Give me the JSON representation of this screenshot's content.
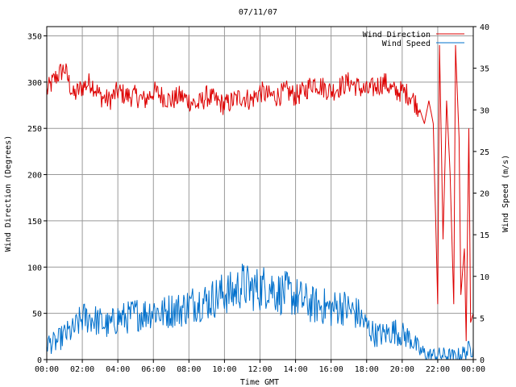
{
  "chart_data": {
    "type": "line",
    "title": "07/11/07",
    "xlabel": "Time GMT",
    "ylabel_left": "Wind Direction (Degrees)",
    "ylabel_right": "Wind Speed (m/s)",
    "x_ticks": [
      "00:00",
      "02:00",
      "04:00",
      "06:00",
      "08:00",
      "10:00",
      "12:00",
      "14:00",
      "16:00",
      "18:00",
      "20:00",
      "22:00",
      "00:00"
    ],
    "xlim_hours": [
      0,
      24
    ],
    "ylim_left": [
      0,
      360
    ],
    "ylim_right": [
      0,
      40
    ],
    "y_ticks_left": [
      0,
      50,
      100,
      150,
      200,
      250,
      300,
      350
    ],
    "y_ticks_right": [
      0,
      5,
      10,
      15,
      20,
      25,
      30,
      35,
      40
    ],
    "grid": true,
    "legend_position": "top-right",
    "colors": {
      "wind_direction": "#dd0000",
      "wind_speed": "#0070cc",
      "grid": "#999999"
    },
    "series": [
      {
        "name": "Wind Direction",
        "axis": "left",
        "points": [
          [
            0,
            290
          ],
          [
            0.5,
            305
          ],
          [
            1,
            315
          ],
          [
            1.5,
            285
          ],
          [
            2,
            295
          ],
          [
            2.5,
            300
          ],
          [
            3,
            285
          ],
          [
            3.5,
            280
          ],
          [
            4,
            290
          ],
          [
            4.5,
            285
          ],
          [
            5,
            285
          ],
          [
            5.5,
            280
          ],
          [
            6,
            290
          ],
          [
            6.5,
            285
          ],
          [
            7,
            280
          ],
          [
            7.5,
            285
          ],
          [
            8,
            280
          ],
          [
            8.5,
            275
          ],
          [
            9,
            285
          ],
          [
            9.5,
            280
          ],
          [
            10,
            275
          ],
          [
            10.5,
            280
          ],
          [
            11,
            285
          ],
          [
            11.5,
            280
          ],
          [
            12,
            290
          ],
          [
            12.5,
            285
          ],
          [
            13,
            285
          ],
          [
            13.5,
            290
          ],
          [
            14,
            285
          ],
          [
            14.5,
            290
          ],
          [
            15,
            300
          ],
          [
            15.5,
            295
          ],
          [
            16,
            290
          ],
          [
            16.5,
            295
          ],
          [
            17,
            300
          ],
          [
            17.5,
            295
          ],
          [
            18,
            290
          ],
          [
            18.5,
            295
          ],
          [
            19,
            300
          ],
          [
            19.5,
            290
          ],
          [
            20,
            290
          ],
          [
            20.5,
            285
          ],
          [
            21,
            270
          ],
          [
            21.25,
            255
          ],
          [
            21.5,
            280
          ],
          [
            21.75,
            255
          ],
          [
            22,
            60
          ],
          [
            22.1,
            340
          ],
          [
            22.3,
            130
          ],
          [
            22.5,
            280
          ],
          [
            22.7,
            200
          ],
          [
            22.9,
            60
          ],
          [
            23,
            340
          ],
          [
            23.2,
            240
          ],
          [
            23.3,
            70
          ],
          [
            23.5,
            120
          ],
          [
            23.6,
            20
          ],
          [
            23.75,
            250
          ],
          [
            23.85,
            40
          ],
          [
            24,
            50
          ]
        ]
      },
      {
        "name": "Wind Speed",
        "axis": "right",
        "points": [
          [
            0,
            2
          ],
          [
            0.5,
            2
          ],
          [
            1,
            3
          ],
          [
            1.5,
            3.5
          ],
          [
            2,
            5
          ],
          [
            2.5,
            5
          ],
          [
            3,
            4.5
          ],
          [
            3.5,
            4
          ],
          [
            4,
            5
          ],
          [
            4.5,
            5
          ],
          [
            5,
            5.5
          ],
          [
            5.5,
            5.5
          ],
          [
            6,
            6
          ],
          [
            6.5,
            5.5
          ],
          [
            7,
            6
          ],
          [
            7.5,
            6
          ],
          [
            8,
            6.5
          ],
          [
            8.5,
            7
          ],
          [
            9,
            7
          ],
          [
            9.5,
            7.5
          ],
          [
            10,
            8
          ],
          [
            10.5,
            8
          ],
          [
            11,
            9
          ],
          [
            11.5,
            8.5
          ],
          [
            12,
            8.5
          ],
          [
            12.5,
            9
          ],
          [
            13,
            8
          ],
          [
            13.5,
            8
          ],
          [
            14,
            7.5
          ],
          [
            14.5,
            7
          ],
          [
            15,
            6.5
          ],
          [
            15.5,
            6.5
          ],
          [
            16,
            6
          ],
          [
            16.5,
            6.5
          ],
          [
            17,
            6
          ],
          [
            17.5,
            5.5
          ],
          [
            18,
            4
          ],
          [
            18.5,
            3
          ],
          [
            19,
            3
          ],
          [
            19.5,
            3.5
          ],
          [
            20,
            3
          ],
          [
            20.5,
            2.5
          ],
          [
            21,
            1
          ],
          [
            21.5,
            0.5
          ],
          [
            22,
            0.5
          ],
          [
            22.5,
            0.5
          ],
          [
            23,
            0.3
          ],
          [
            23.5,
            0.8
          ],
          [
            24,
            1.5
          ]
        ]
      }
    ]
  }
}
